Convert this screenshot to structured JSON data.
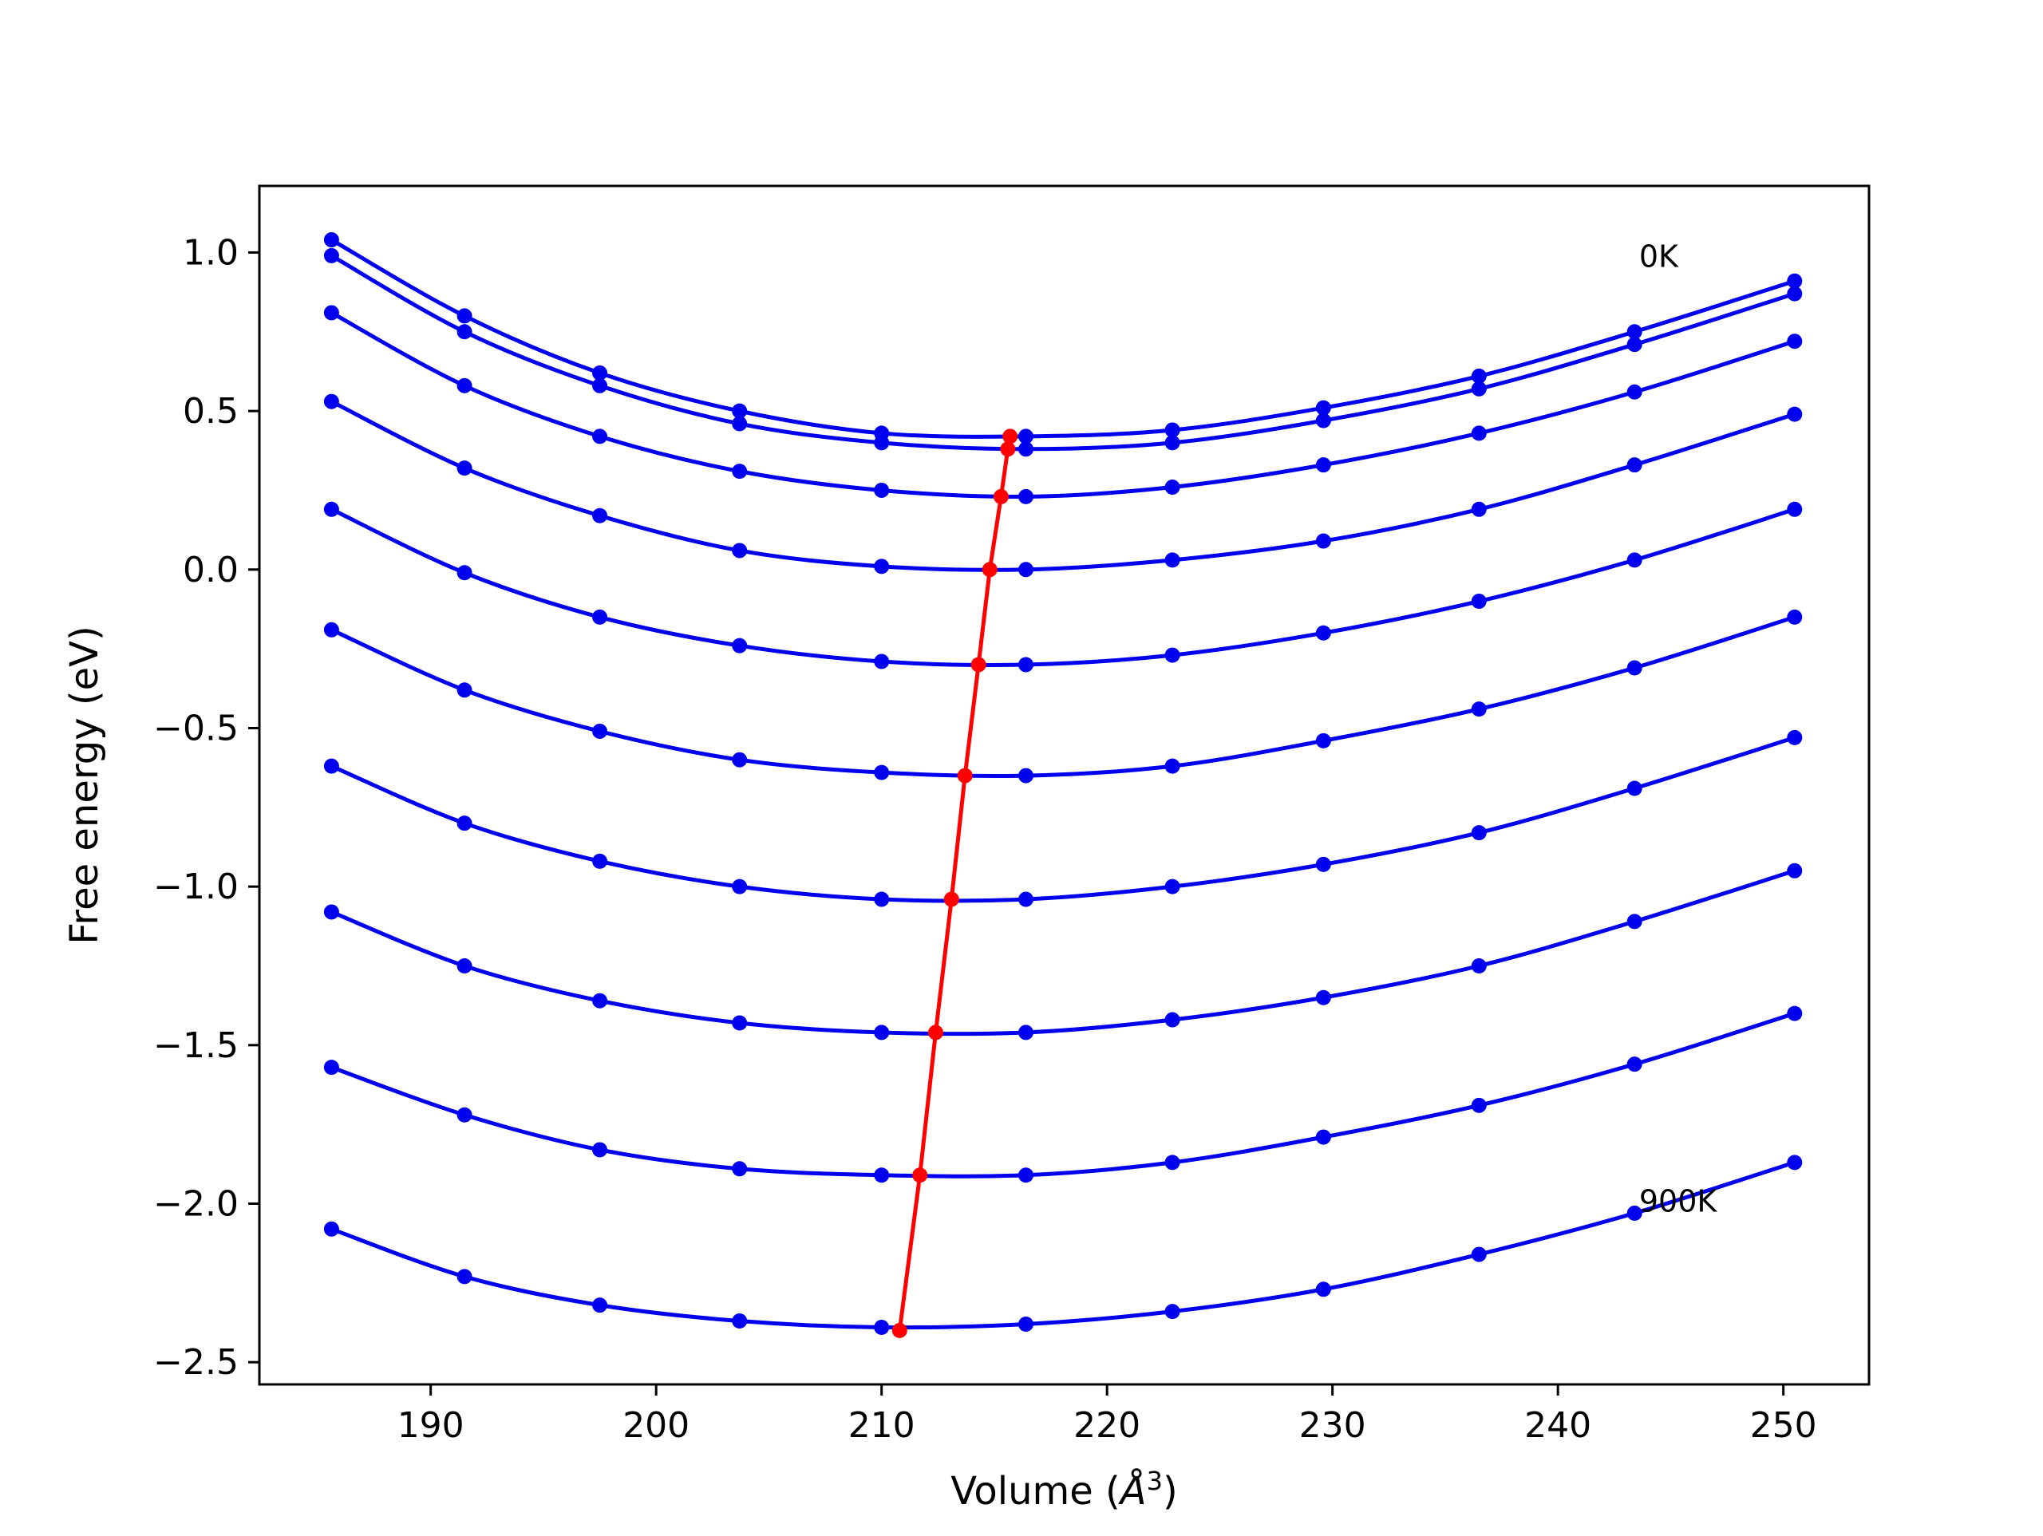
{
  "chart_data": {
    "type": "line",
    "title": "",
    "xlabel_prefix": "Volume (",
    "xlabel_symbol": "Å",
    "xlabel_sup": "3",
    "xlabel_suffix": ")",
    "ylabel": "Free energy (eV)",
    "xlim": [
      182.4,
      253.8
    ],
    "ylim": [
      -2.57,
      1.21
    ],
    "xticks": [
      190,
      200,
      210,
      220,
      230,
      240,
      250
    ],
    "xtick_labels": [
      "190",
      "200",
      "210",
      "220",
      "230",
      "240",
      "250"
    ],
    "yticks": [
      1.0,
      0.5,
      0.0,
      -0.5,
      -1.0,
      -1.5,
      -2.0,
      -2.5
    ],
    "ytick_labels": [
      "1.0",
      "0.5",
      "0.0",
      "−0.5",
      "−1.0",
      "−1.5",
      "−2.0",
      "−2.5"
    ],
    "grid": false,
    "colors": {
      "series": "#0000ee",
      "minimum": "#ff0000",
      "frame": "#000000"
    },
    "annotations": [
      {
        "text": "0K",
        "x": 243.6,
        "y": 0.99
      },
      {
        "text": "900K",
        "x": 243.6,
        "y": -1.99
      }
    ],
    "volume_points": [
      185.6,
      191.5,
      197.5,
      203.7,
      210.0,
      216.4,
      222.9,
      229.6,
      236.5,
      243.4,
      250.5
    ],
    "series": [
      {
        "values": [
          1.04,
          0.8,
          0.62,
          0.5,
          0.43,
          0.42,
          0.44,
          0.51,
          0.61,
          0.75,
          0.91
        ],
        "min": [
          215.7,
          0.42
        ]
      },
      {
        "values": [
          0.99,
          0.75,
          0.58,
          0.46,
          0.4,
          0.38,
          0.4,
          0.47,
          0.57,
          0.71,
          0.87
        ],
        "min": [
          215.6,
          0.38
        ]
      },
      {
        "values": [
          0.81,
          0.58,
          0.42,
          0.31,
          0.25,
          0.23,
          0.26,
          0.33,
          0.43,
          0.56,
          0.72
        ],
        "min": [
          215.3,
          0.23
        ]
      },
      {
        "values": [
          0.53,
          0.32,
          0.17,
          0.06,
          0.01,
          0.0,
          0.03,
          0.09,
          0.19,
          0.33,
          0.49
        ],
        "min": [
          214.8,
          0.0
        ]
      },
      {
        "values": [
          0.19,
          -0.01,
          -0.15,
          -0.24,
          -0.29,
          -0.3,
          -0.27,
          -0.2,
          -0.1,
          0.03,
          0.19
        ],
        "min": [
          214.3,
          -0.3
        ]
      },
      {
        "values": [
          -0.19,
          -0.38,
          -0.51,
          -0.6,
          -0.64,
          -0.65,
          -0.62,
          -0.54,
          -0.44,
          -0.31,
          -0.15
        ],
        "min": [
          213.7,
          -0.65
        ]
      },
      {
        "values": [
          -0.62,
          -0.8,
          -0.92,
          -1.0,
          -1.04,
          -1.04,
          -1.0,
          -0.93,
          -0.83,
          -0.69,
          -0.53
        ],
        "min": [
          213.1,
          -1.04
        ]
      },
      {
        "values": [
          -1.08,
          -1.25,
          -1.36,
          -1.43,
          -1.46,
          -1.46,
          -1.42,
          -1.35,
          -1.25,
          -1.11,
          -0.95
        ],
        "min": [
          212.4,
          -1.46
        ]
      },
      {
        "values": [
          -1.57,
          -1.72,
          -1.83,
          -1.89,
          -1.91,
          -1.91,
          -1.87,
          -1.79,
          -1.69,
          -1.56,
          -1.4
        ],
        "min": [
          211.7,
          -1.91
        ]
      },
      {
        "values": [
          -2.08,
          -2.23,
          -2.32,
          -2.37,
          -2.39,
          -2.38,
          -2.34,
          -2.27,
          -2.16,
          -2.03,
          -1.87
        ],
        "min": [
          210.8,
          -2.4
        ]
      }
    ]
  }
}
